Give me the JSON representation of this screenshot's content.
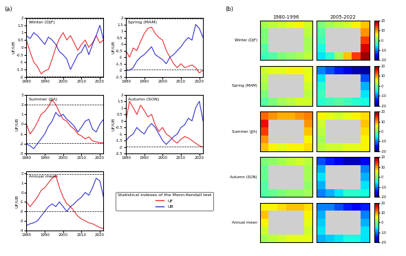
{
  "panel_labels": [
    "(a)",
    "(b)"
  ],
  "legend_box": {
    "title": "Statistical indexes of the Mann-Kendall test"
  },
  "chart_data": [
    {
      "type": "line",
      "title": "Winter (DJF)",
      "ylabel": "UF/UB",
      "x": [
        1980,
        1982,
        1984,
        1986,
        1988,
        1990,
        1992,
        1994,
        1996,
        1998,
        2000,
        2002,
        2004,
        2006,
        2008,
        2010,
        2012,
        2014,
        2016,
        2018,
        2020,
        2022
      ],
      "series": [
        {
          "name": "UF",
          "color": "#e8262b",
          "values": [
            0.5,
            -0.3,
            -1.0,
            -1.3,
            -1.8,
            -1.6,
            -1.5,
            -0.8,
            0.0,
            0.6,
            1.0,
            0.5,
            0.8,
            0.3,
            -0.2,
            0.2,
            0.5,
            0.0,
            0.3,
            0.8,
            0.3,
            0.5
          ]
        },
        {
          "name": "UB",
          "color": "#2b2bd0",
          "values": [
            0.8,
            0.6,
            1.0,
            0.8,
            0.5,
            0.2,
            0.7,
            0.5,
            0.2,
            -0.3,
            -0.5,
            -0.8,
            -1.5,
            -1.0,
            -0.5,
            -0.3,
            0.2,
            -0.5,
            0.2,
            0.8,
            1.5,
            0.5
          ]
        }
      ],
      "significance_levels": [
        -1.96,
        1.96
      ],
      "xlim": [
        1980,
        2022
      ],
      "xticks": [
        1980,
        1990,
        2000,
        2010,
        2020
      ],
      "ylim": [
        -2,
        2
      ],
      "yticks": [
        -2,
        -1.5,
        -1,
        -0.5,
        0,
        0.5,
        1,
        1.5,
        2
      ]
    },
    {
      "type": "line",
      "title": "Spring (MAM)",
      "ylabel": "UF/UB",
      "x": [
        1980,
        1982,
        1984,
        1986,
        1988,
        1990,
        1992,
        1994,
        1996,
        1998,
        2000,
        2002,
        2004,
        2006,
        2008,
        2010,
        2012,
        2014,
        2016,
        2018,
        2020,
        2022
      ],
      "series": [
        {
          "name": "UF",
          "color": "#e8262b",
          "values": [
            -0.5,
            -1.0,
            -0.3,
            -0.5,
            0.2,
            0.8,
            1.2,
            1.3,
            0.8,
            0.5,
            0.3,
            -0.5,
            -1.0,
            -1.5,
            -1.8,
            -1.5,
            -1.8,
            -1.7,
            -1.6,
            -1.8,
            -2.2,
            -2.0
          ]
        },
        {
          "name": "UB",
          "color": "#2b2bd0",
          "values": [
            -2.0,
            -2.0,
            -1.8,
            -1.3,
            -1.0,
            -0.8,
            -0.5,
            -0.2,
            -0.8,
            -1.0,
            -1.2,
            -1.5,
            -1.0,
            -0.8,
            -0.5,
            -0.2,
            0.2,
            0.5,
            0.3,
            1.5,
            1.2,
            0.5
          ]
        }
      ],
      "significance_levels": [
        -1.96,
        1.96
      ],
      "xlim": [
        1980,
        2022
      ],
      "xticks": [
        1980,
        1990,
        2000,
        2010,
        2020
      ],
      "ylim": [
        -2.5,
        2
      ],
      "yticks": [
        -2.5,
        -2,
        -1.5,
        -1,
        -0.5,
        0,
        0.5,
        1,
        1.5,
        2
      ]
    },
    {
      "type": "line",
      "title": "Summer (JJA)",
      "ylabel": "UF/UB",
      "x": [
        1980,
        1982,
        1984,
        1986,
        1988,
        1990,
        1992,
        1994,
        1996,
        1998,
        2000,
        2002,
        2004,
        2006,
        2008,
        2010,
        2012,
        2014,
        2016,
        2018,
        2020,
        2022
      ],
      "series": [
        {
          "name": "UF",
          "color": "#e8262b",
          "values": [
            0.0,
            -1.0,
            -0.5,
            0.2,
            1.0,
            1.3,
            1.8,
            2.5,
            2.0,
            1.2,
            0.5,
            0.3,
            -0.2,
            -0.5,
            -1.0,
            -1.2,
            -1.5,
            -1.3,
            -1.7,
            -1.8,
            -1.9,
            -1.9
          ]
        },
        {
          "name": "UB",
          "color": "#2b2bd0",
          "values": [
            -2.0,
            -2.2,
            -2.5,
            -2.0,
            -1.5,
            -1.0,
            -0.2,
            0.3,
            1.2,
            0.8,
            1.0,
            0.5,
            0.2,
            -0.2,
            -0.8,
            -0.3,
            0.3,
            0.5,
            -0.5,
            -0.8,
            0.0,
            0.5
          ]
        }
      ],
      "significance_levels": [
        -1.96,
        1.96
      ],
      "xlim": [
        1980,
        2022
      ],
      "xticks": [
        1980,
        1990,
        2000,
        2010,
        2020
      ],
      "ylim": [
        -3,
        3
      ],
      "yticks": [
        -3,
        -2,
        -1,
        0,
        1,
        2,
        3
      ]
    },
    {
      "type": "line",
      "title": "Autumn (SON)",
      "ylabel": "UF/UB",
      "x": [
        1980,
        1982,
        1984,
        1986,
        1988,
        1990,
        1992,
        1994,
        1996,
        1998,
        2000,
        2002,
        2004,
        2006,
        2008,
        2010,
        2012,
        2014,
        2016,
        2018,
        2020,
        2022
      ],
      "series": [
        {
          "name": "UF",
          "color": "#e8262b",
          "values": [
            0.0,
            1.5,
            1.0,
            0.5,
            1.2,
            0.8,
            0.3,
            0.5,
            -0.3,
            -0.8,
            -0.5,
            -1.0,
            -1.2,
            -1.5,
            -1.7,
            -1.4,
            -1.2,
            -1.3,
            -1.5,
            -1.7,
            -1.9,
            -2.0
          ]
        },
        {
          "name": "UB",
          "color": "#2b2bd0",
          "values": [
            -1.5,
            -1.2,
            -1.0,
            -0.5,
            -0.8,
            -1.0,
            -0.5,
            -0.2,
            -0.5,
            -1.0,
            -1.5,
            -1.8,
            -1.5,
            -1.2,
            -1.0,
            -0.5,
            -0.3,
            0.2,
            0.0,
            1.0,
            1.5,
            0.0
          ]
        }
      ],
      "significance_levels": [
        -1.96,
        1.96
      ],
      "xlim": [
        1980,
        2022
      ],
      "xticks": [
        1980,
        1990,
        2000,
        2010,
        2020
      ],
      "ylim": [
        -2.5,
        2
      ],
      "yticks": [
        -2.5,
        -2,
        -1.5,
        -1,
        -0.5,
        0,
        0.5,
        1,
        1.5,
        2
      ]
    },
    {
      "type": "line",
      "title": "Annual mean",
      "ylabel": "UF/UB",
      "x": [
        1980,
        1982,
        1984,
        1986,
        1988,
        1990,
        1992,
        1994,
        1996,
        1998,
        2000,
        2002,
        2004,
        2006,
        2008,
        2010,
        2012,
        2014,
        2016,
        2018,
        2020,
        2022
      ],
      "series": [
        {
          "name": "UF",
          "color": "#e8262b",
          "values": [
            -1.0,
            -1.5,
            -1.0,
            -0.5,
            0.2,
            0.5,
            1.0,
            1.5,
            1.8,
            0.5,
            -0.5,
            -1.2,
            -1.5,
            -2.0,
            -2.5,
            -2.8,
            -3.0,
            -3.2,
            -3.3,
            -3.5,
            -3.7,
            -3.8
          ]
        },
        {
          "name": "UB",
          "color": "#2b2bd0",
          "values": [
            -3.5,
            -3.3,
            -3.2,
            -3.0,
            -2.5,
            -2.0,
            -1.5,
            -1.2,
            -1.5,
            -1.0,
            -1.5,
            -2.0,
            -1.5,
            -1.2,
            -0.8,
            -0.5,
            0.0,
            -0.3,
            0.5,
            1.5,
            1.2,
            -0.5
          ]
        }
      ],
      "significance_levels": [
        -1.96,
        1.96
      ],
      "xlim": [
        1980,
        2022
      ],
      "xticks": [
        1980,
        1990,
        2000,
        2010,
        2020
      ],
      "ylim": [
        -4,
        2.2
      ],
      "yticks": [
        -4,
        -3,
        -2,
        -1,
        0,
        1,
        2
      ]
    },
    {
      "type": "heatmap",
      "title": "1980-1996",
      "row_label": "Winter (DJF)",
      "tick_labels": false,
      "cbar_range": [
        -20,
        20
      ],
      "cells": [
        [
          2,
          3,
          4,
          5,
          6,
          4
        ],
        [
          0,
          null,
          null,
          null,
          null,
          3
        ],
        [
          0,
          null,
          null,
          null,
          null,
          2
        ],
        [
          -2,
          null,
          null,
          null,
          null,
          2
        ],
        [
          -3,
          -2,
          0,
          1,
          2,
          3
        ]
      ]
    },
    {
      "type": "heatmap",
      "title": "2005-2022",
      "tick_labels": false,
      "cbar_range": [
        -20,
        20
      ],
      "cbar_ticks": [
        -20,
        -10,
        0,
        10,
        20
      ],
      "cells": [
        [
          0,
          2,
          3,
          4,
          6,
          8
        ],
        [
          -2,
          null,
          null,
          null,
          null,
          10
        ],
        [
          -3,
          null,
          null,
          null,
          null,
          14
        ],
        [
          -5,
          null,
          null,
          null,
          null,
          17
        ],
        [
          -6,
          -4,
          2,
          8,
          14,
          19
        ]
      ]
    },
    {
      "type": "heatmap",
      "row_label": "Spring (MAM)",
      "tick_labels": false,
      "cbar_range": [
        -20,
        20
      ],
      "cells": [
        [
          4,
          5,
          5,
          6,
          6,
          5
        ],
        [
          3,
          null,
          null,
          null,
          null,
          5
        ],
        [
          2,
          null,
          null,
          null,
          null,
          4
        ],
        [
          0,
          null,
          null,
          null,
          null,
          3
        ],
        [
          -2,
          0,
          2,
          3,
          4,
          4
        ]
      ]
    },
    {
      "type": "heatmap",
      "tick_labels": false,
      "cbar_range": [
        -20,
        20
      ],
      "cbar_ticks": [
        -20,
        -10,
        0,
        10,
        20
      ],
      "cells": [
        [
          -10,
          -12,
          -14,
          -16,
          -18,
          -19
        ],
        [
          -6,
          null,
          null,
          null,
          null,
          -12
        ],
        [
          -4,
          null,
          null,
          null,
          null,
          -8
        ],
        [
          -3,
          null,
          null,
          null,
          null,
          -6
        ],
        [
          -4,
          -3,
          -2,
          -3,
          -4,
          -5
        ]
      ]
    },
    {
      "type": "heatmap",
      "row_label": "Summer (JJA)",
      "tick_labels": false,
      "cbar_range": [
        -20,
        20
      ],
      "cells": [
        [
          12,
          10,
          9,
          9,
          10,
          11
        ],
        [
          16,
          null,
          null,
          null,
          null,
          10
        ],
        [
          14,
          null,
          null,
          null,
          null,
          8
        ],
        [
          10,
          null,
          null,
          null,
          null,
          6
        ],
        [
          8,
          6,
          5,
          6,
          6,
          7
        ]
      ]
    },
    {
      "type": "heatmap",
      "tick_labels": false,
      "cbar_range": [
        -20,
        20
      ],
      "cbar_ticks": [
        -20,
        -10,
        0,
        10,
        20
      ],
      "cells": [
        [
          6,
          5,
          4,
          5,
          6,
          7
        ],
        [
          4,
          null,
          null,
          null,
          null,
          8
        ],
        [
          3,
          null,
          null,
          null,
          null,
          7
        ],
        [
          2,
          null,
          null,
          null,
          null,
          6
        ],
        [
          3,
          4,
          4,
          5,
          5,
          6
        ]
      ]
    },
    {
      "type": "heatmap",
      "row_label": "Autumn (SON)",
      "tick_labels": false,
      "cbar_range": [
        -20,
        20
      ],
      "cells": [
        [
          0,
          1,
          2,
          3,
          4,
          3
        ],
        [
          -1,
          null,
          null,
          null,
          null,
          2
        ],
        [
          -1,
          null,
          null,
          null,
          null,
          2
        ],
        [
          -2,
          null,
          null,
          null,
          null,
          1
        ],
        [
          -2,
          -1,
          0,
          1,
          1,
          2
        ]
      ]
    },
    {
      "type": "heatmap",
      "tick_labels": false,
      "cbar_range": [
        -20,
        20
      ],
      "cbar_ticks": [
        -20,
        -10,
        0,
        10,
        20
      ],
      "cells": [
        [
          -12,
          -14,
          -16,
          -18,
          -18,
          -16
        ],
        [
          -8,
          null,
          null,
          null,
          null,
          -10
        ],
        [
          -6,
          null,
          null,
          null,
          null,
          -8
        ],
        [
          -8,
          null,
          null,
          null,
          null,
          -6
        ],
        [
          -10,
          -8,
          -6,
          -4,
          -4,
          -5
        ]
      ]
    },
    {
      "type": "heatmap",
      "row_label": "Annual mean",
      "tick_labels": false,
      "cbar_range": [
        -20,
        20
      ],
      "cells": [
        [
          6,
          6,
          7,
          8,
          8,
          7
        ],
        [
          8,
          null,
          null,
          null,
          null,
          6
        ],
        [
          6,
          null,
          null,
          null,
          null,
          5
        ],
        [
          4,
          null,
          null,
          null,
          null,
          4
        ],
        [
          2,
          3,
          4,
          5,
          5,
          5
        ]
      ]
    },
    {
      "type": "heatmap",
      "tick_labels": false,
      "cbar_range": [
        -20,
        20
      ],
      "cbar_ticks": [
        -20,
        -10,
        0,
        10,
        20
      ],
      "cells": [
        [
          -10,
          -10,
          -12,
          -14,
          -15,
          -14
        ],
        [
          -8,
          null,
          null,
          null,
          null,
          -10
        ],
        [
          -7,
          null,
          null,
          null,
          null,
          -8
        ],
        [
          -6,
          null,
          null,
          null,
          null,
          -6
        ],
        [
          -8,
          -7,
          -6,
          -5,
          -5,
          -6
        ]
      ]
    }
  ]
}
